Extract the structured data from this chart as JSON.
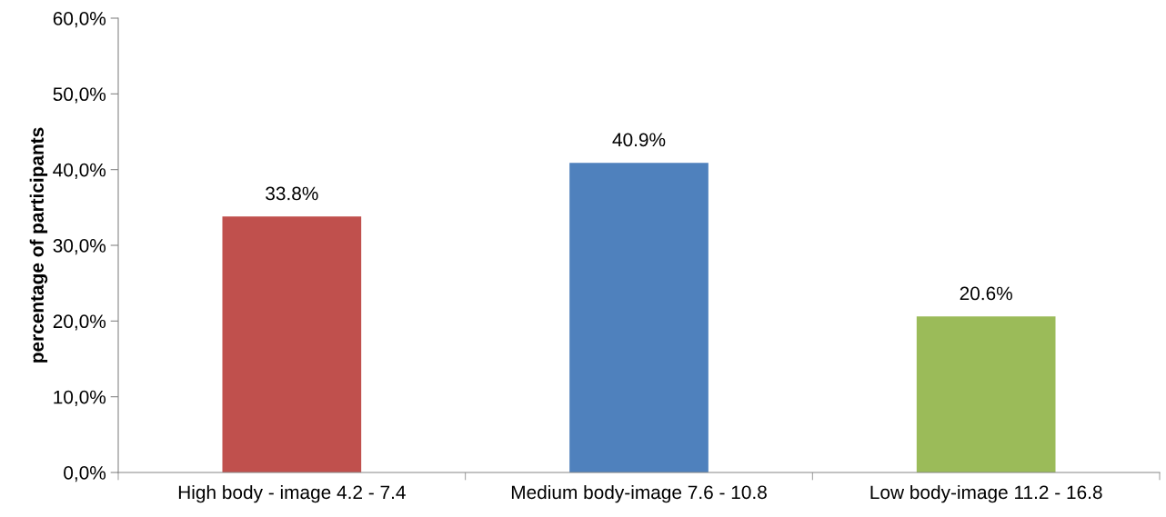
{
  "chart_data": {
    "type": "bar",
    "ylabel": "percentage of participants",
    "categories": [
      "High body - image 4.2 - 7.4",
      "Medium body-image 7.6 - 10.8",
      "Low body-image 11.2 - 16.8"
    ],
    "values": [
      33.8,
      40.9,
      20.6
    ],
    "colors": [
      "#c0504d",
      "#4f81bd",
      "#9bbb59"
    ],
    "value_labels": [
      "33.8%",
      "40.9%",
      "20.6%"
    ],
    "ylim": [
      0,
      60
    ],
    "yticks": [
      {
        "value": 0,
        "label": "0,0%"
      },
      {
        "value": 10,
        "label": "10,0%"
      },
      {
        "value": 20,
        "label": "20,0%"
      },
      {
        "value": 30,
        "label": "30,0%"
      },
      {
        "value": 40,
        "label": "40,0%"
      },
      {
        "value": 50,
        "label": "50,0%"
      },
      {
        "value": 60,
        "label": "60,0%"
      }
    ],
    "grid": false
  }
}
